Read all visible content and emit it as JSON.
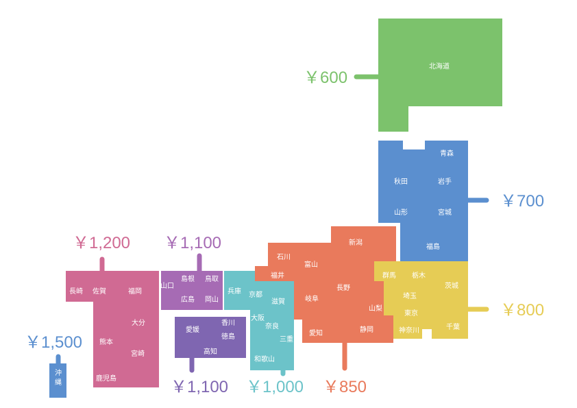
{
  "colors": {
    "hokkaido": "#7cc26c",
    "tohoku": "#5b8fcf",
    "kanto": "#e6cc55",
    "chubu": "#e97a5c",
    "kinki": "#6cc3c9",
    "chugoku": "#a66bb4",
    "shikoku": "#7f66b1",
    "kyushu": "#d06a93",
    "okinawa": "#5b8fcf"
  },
  "regions": {
    "hokkaido": {
      "price": "￥600",
      "prefs": [
        "北海道"
      ]
    },
    "tohoku": {
      "price": "￥700",
      "prefs": [
        "青森",
        "秋田",
        "岩手",
        "山形",
        "宮城",
        "福島"
      ]
    },
    "kanto": {
      "price": "￥800",
      "prefs": [
        "群馬",
        "栃木",
        "茨城",
        "埼玉",
        "東京",
        "神奈川",
        "千葉"
      ]
    },
    "chubu": {
      "price": "￥850",
      "prefs": [
        "新潟",
        "石川",
        "富山",
        "福井",
        "長野",
        "岐阜",
        "山梨",
        "愛知",
        "静岡"
      ]
    },
    "kinki": {
      "price": "￥1,000",
      "prefs": [
        "兵庫",
        "京都",
        "滋賀",
        "大阪",
        "奈良",
        "三重",
        "和歌山"
      ]
    },
    "chugoku": {
      "price": "￥1,100",
      "prefs": [
        "島根",
        "鳥取",
        "山口",
        "広島",
        "岡山"
      ]
    },
    "shikoku": {
      "price": "￥1,100",
      "prefs": [
        "香川",
        "愛媛",
        "徳島",
        "高知"
      ]
    },
    "kyushu": {
      "price": "￥1,200",
      "prefs": [
        "長崎",
        "佐賀",
        "福岡",
        "大分",
        "熊本",
        "宮崎",
        "鹿児島"
      ]
    },
    "okinawa": {
      "price": "￥1,500",
      "prefs": [
        "沖縄"
      ]
    }
  }
}
